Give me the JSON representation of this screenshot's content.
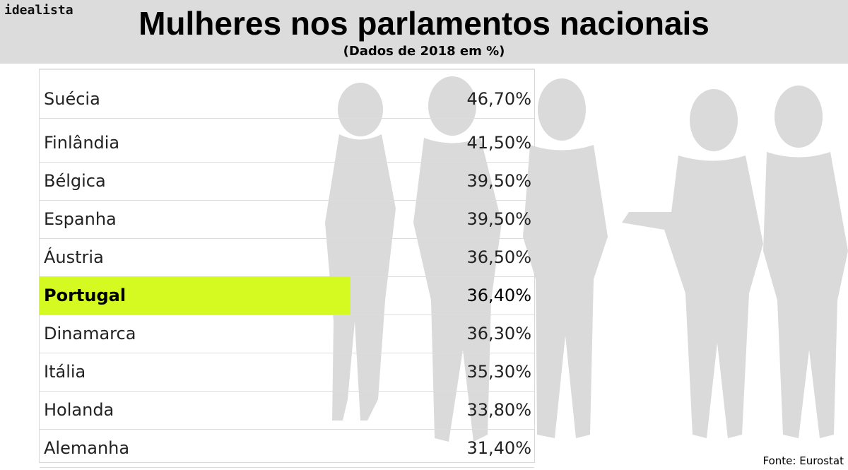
{
  "brand": "idealista",
  "source": "Fonte: Eurostat",
  "colors": {
    "highlight": "#d4fa21",
    "header_bg": "#dcdcdc",
    "silhouette": "#d9d9d9"
  },
  "chart_data": {
    "type": "table",
    "title": "Mulheres nos parlamentos nacionais",
    "subtitle": "(Dados de 2018 em %)",
    "highlighted": "Portugal",
    "rows": [
      {
        "country": "Suécia",
        "value": 46.7,
        "label": "46,70%"
      },
      {
        "country": "Finlândia",
        "value": 41.5,
        "label": "41,50%"
      },
      {
        "country": "Bélgica",
        "value": 39.5,
        "label": "39,50%"
      },
      {
        "country": "Espanha",
        "value": 39.5,
        "label": "39,50%"
      },
      {
        "country": "Áustria",
        "value": 36.5,
        "label": "36,50%"
      },
      {
        "country": "Portugal",
        "value": 36.4,
        "label": "36,40%"
      },
      {
        "country": "Dinamarca",
        "value": 36.3,
        "label": "36,30%"
      },
      {
        "country": "Itália",
        "value": 35.3,
        "label": "35,30%"
      },
      {
        "country": "Holanda",
        "value": 33.8,
        "label": "33,80%"
      },
      {
        "country": "Alemanha",
        "value": 31.4,
        "label": "31,40%"
      }
    ]
  }
}
